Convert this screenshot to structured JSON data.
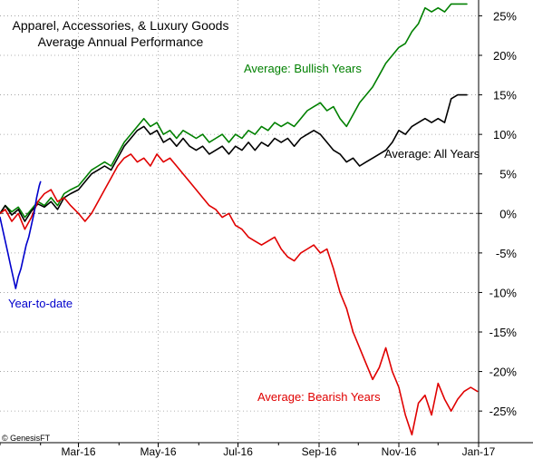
{
  "chart_data": {
    "type": "line",
    "title": "Apparel, Accessories, & Luxury Goods",
    "subtitle": "Average Annual Performance",
    "credit": "© GenesisFT",
    "y_unit": "percent",
    "ylim": [
      -29,
      27
    ],
    "y_ticks": [
      25,
      20,
      15,
      10,
      5,
      0,
      -5,
      -10,
      -15,
      -20,
      -25
    ],
    "y_tick_labels": [
      "25%",
      "20%",
      "15%",
      "10%",
      "5%",
      "0%",
      "-5%",
      "-10%",
      "-15%",
      "-20%",
      "-25%"
    ],
    "x_tick_labels": [
      "Mar-16",
      "May-16",
      "Jul-16",
      "Sep-16",
      "Nov-16",
      "Jan-17"
    ],
    "x_ticks": [
      "2016-03-01",
      "2016-05-01",
      "2016-07-01",
      "2016-09-01",
      "2016-11-01",
      "2017-01-01"
    ],
    "xlim": [
      "2016-01-01",
      "2017-01-01"
    ],
    "grid": true,
    "series": [
      {
        "name": "Average: Bullish Years",
        "color": "#008000",
        "points": [
          [
            "2016-01-01",
            0
          ],
          [
            "2016-01-05",
            1
          ],
          [
            "2016-01-10",
            0.2
          ],
          [
            "2016-01-15",
            0.8
          ],
          [
            "2016-01-20",
            -0.5
          ],
          [
            "2016-01-25",
            0.5
          ],
          [
            "2016-01-30",
            1.5
          ],
          [
            "2016-02-04",
            1.0
          ],
          [
            "2016-02-09",
            2.0
          ],
          [
            "2016-02-14",
            1.0
          ],
          [
            "2016-02-19",
            2.5
          ],
          [
            "2016-02-24",
            3.0
          ],
          [
            "2016-03-01",
            3.5
          ],
          [
            "2016-03-06",
            4.5
          ],
          [
            "2016-03-11",
            5.5
          ],
          [
            "2016-03-16",
            6.0
          ],
          [
            "2016-03-21",
            6.5
          ],
          [
            "2016-03-26",
            6.0
          ],
          [
            "2016-03-31",
            7.5
          ],
          [
            "2016-04-05",
            9.0
          ],
          [
            "2016-04-10",
            10.0
          ],
          [
            "2016-04-15",
            11.0
          ],
          [
            "2016-04-20",
            12.0
          ],
          [
            "2016-04-25",
            11.0
          ],
          [
            "2016-04-30",
            11.5
          ],
          [
            "2016-05-05",
            10.0
          ],
          [
            "2016-05-10",
            10.5
          ],
          [
            "2016-05-15",
            9.5
          ],
          [
            "2016-05-20",
            10.5
          ],
          [
            "2016-05-25",
            10.0
          ],
          [
            "2016-05-30",
            9.5
          ],
          [
            "2016-06-04",
            10.0
          ],
          [
            "2016-06-09",
            9.0
          ],
          [
            "2016-06-14",
            9.5
          ],
          [
            "2016-06-19",
            10.0
          ],
          [
            "2016-06-24",
            9.0
          ],
          [
            "2016-06-29",
            10.0
          ],
          [
            "2016-07-04",
            9.5
          ],
          [
            "2016-07-09",
            10.5
          ],
          [
            "2016-07-14",
            10.0
          ],
          [
            "2016-07-19",
            11.0
          ],
          [
            "2016-07-24",
            10.5
          ],
          [
            "2016-07-29",
            11.5
          ],
          [
            "2016-08-03",
            11.0
          ],
          [
            "2016-08-08",
            11.5
          ],
          [
            "2016-08-13",
            11.0
          ],
          [
            "2016-08-18",
            12.0
          ],
          [
            "2016-08-23",
            13.0
          ],
          [
            "2016-08-28",
            13.5
          ],
          [
            "2016-09-02",
            14.0
          ],
          [
            "2016-09-07",
            13.0
          ],
          [
            "2016-09-12",
            13.5
          ],
          [
            "2016-09-17",
            12.0
          ],
          [
            "2016-09-22",
            11.0
          ],
          [
            "2016-09-27",
            12.5
          ],
          [
            "2016-10-02",
            14.0
          ],
          [
            "2016-10-07",
            15.0
          ],
          [
            "2016-10-12",
            16.0
          ],
          [
            "2016-10-17",
            17.5
          ],
          [
            "2016-10-22",
            19.0
          ],
          [
            "2016-10-27",
            20.0
          ],
          [
            "2016-11-01",
            21.0
          ],
          [
            "2016-11-06",
            21.5
          ],
          [
            "2016-11-11",
            23.0
          ],
          [
            "2016-11-16",
            24.0
          ],
          [
            "2016-11-21",
            26.0
          ],
          [
            "2016-11-26",
            25.5
          ],
          [
            "2016-12-01",
            26.0
          ],
          [
            "2016-12-06",
            25.5
          ],
          [
            "2016-12-11",
            26.5
          ],
          [
            "2016-12-16",
            26.5
          ],
          [
            "2016-12-23",
            26.5
          ]
        ]
      },
      {
        "name": "Average: All Years",
        "color": "#000000",
        "points": [
          [
            "2016-01-01",
            0
          ],
          [
            "2016-01-05",
            1
          ],
          [
            "2016-01-10",
            -0.2
          ],
          [
            "2016-01-15",
            0.5
          ],
          [
            "2016-01-20",
            -1.0
          ],
          [
            "2016-01-25",
            0.3
          ],
          [
            "2016-01-30",
            1.2
          ],
          [
            "2016-02-04",
            0.8
          ],
          [
            "2016-02-09",
            1.5
          ],
          [
            "2016-02-14",
            0.5
          ],
          [
            "2016-02-19",
            2.0
          ],
          [
            "2016-02-24",
            2.5
          ],
          [
            "2016-03-01",
            3.0
          ],
          [
            "2016-03-06",
            4.0
          ],
          [
            "2016-03-11",
            5.0
          ],
          [
            "2016-03-16",
            5.5
          ],
          [
            "2016-03-21",
            6.0
          ],
          [
            "2016-03-26",
            5.5
          ],
          [
            "2016-03-31",
            7.0
          ],
          [
            "2016-04-05",
            8.5
          ],
          [
            "2016-04-10",
            9.5
          ],
          [
            "2016-04-15",
            10.5
          ],
          [
            "2016-04-20",
            11.0
          ],
          [
            "2016-04-25",
            10.0
          ],
          [
            "2016-04-30",
            10.5
          ],
          [
            "2016-05-05",
            9.0
          ],
          [
            "2016-05-10",
            9.5
          ],
          [
            "2016-05-15",
            8.5
          ],
          [
            "2016-05-20",
            9.5
          ],
          [
            "2016-05-25",
            8.5
          ],
          [
            "2016-05-30",
            8.0
          ],
          [
            "2016-06-04",
            8.5
          ],
          [
            "2016-06-09",
            7.5
          ],
          [
            "2016-06-14",
            8.0
          ],
          [
            "2016-06-19",
            8.5
          ],
          [
            "2016-06-24",
            7.5
          ],
          [
            "2016-06-29",
            8.5
          ],
          [
            "2016-07-04",
            8.0
          ],
          [
            "2016-07-09",
            9.0
          ],
          [
            "2016-07-14",
            8.0
          ],
          [
            "2016-07-19",
            9.0
          ],
          [
            "2016-07-24",
            8.5
          ],
          [
            "2016-07-29",
            9.5
          ],
          [
            "2016-08-03",
            9.0
          ],
          [
            "2016-08-08",
            9.5
          ],
          [
            "2016-08-13",
            8.5
          ],
          [
            "2016-08-18",
            9.5
          ],
          [
            "2016-08-23",
            10.0
          ],
          [
            "2016-08-28",
            10.5
          ],
          [
            "2016-09-02",
            10.0
          ],
          [
            "2016-09-07",
            9.0
          ],
          [
            "2016-09-12",
            8.0
          ],
          [
            "2016-09-17",
            7.5
          ],
          [
            "2016-09-22",
            6.5
          ],
          [
            "2016-09-27",
            7.0
          ],
          [
            "2016-10-02",
            6.0
          ],
          [
            "2016-10-07",
            6.5
          ],
          [
            "2016-10-12",
            7.0
          ],
          [
            "2016-10-17",
            7.5
          ],
          [
            "2016-10-22",
            8.0
          ],
          [
            "2016-10-27",
            9.0
          ],
          [
            "2016-11-01",
            10.5
          ],
          [
            "2016-11-06",
            10.0
          ],
          [
            "2016-11-11",
            11.0
          ],
          [
            "2016-11-16",
            11.5
          ],
          [
            "2016-11-21",
            12.0
          ],
          [
            "2016-11-26",
            11.5
          ],
          [
            "2016-12-01",
            12.0
          ],
          [
            "2016-12-06",
            11.5
          ],
          [
            "2016-12-11",
            14.5
          ],
          [
            "2016-12-16",
            15.0
          ],
          [
            "2016-12-23",
            15.0
          ]
        ]
      },
      {
        "name": "Average: Bearish Years",
        "color": "#e00000",
        "points": [
          [
            "2016-01-01",
            0
          ],
          [
            "2016-01-05",
            0.5
          ],
          [
            "2016-01-10",
            -1.0
          ],
          [
            "2016-01-15",
            0.0
          ],
          [
            "2016-01-20",
            -2.0
          ],
          [
            "2016-01-25",
            -0.5
          ],
          [
            "2016-01-30",
            1.5
          ],
          [
            "2016-02-04",
            2.5
          ],
          [
            "2016-02-09",
            3.0
          ],
          [
            "2016-02-14",
            1.5
          ],
          [
            "2016-02-19",
            2.0
          ],
          [
            "2016-02-24",
            1.0
          ],
          [
            "2016-03-01",
            0.0
          ],
          [
            "2016-03-06",
            -1.0
          ],
          [
            "2016-03-11",
            0.0
          ],
          [
            "2016-03-16",
            1.5
          ],
          [
            "2016-03-21",
            3.0
          ],
          [
            "2016-03-26",
            4.5
          ],
          [
            "2016-03-31",
            6.0
          ],
          [
            "2016-04-05",
            7.0
          ],
          [
            "2016-04-10",
            7.5
          ],
          [
            "2016-04-15",
            6.5
          ],
          [
            "2016-04-20",
            7.0
          ],
          [
            "2016-04-25",
            6.0
          ],
          [
            "2016-04-30",
            7.5
          ],
          [
            "2016-05-05",
            6.5
          ],
          [
            "2016-05-10",
            7.0
          ],
          [
            "2016-05-15",
            6.0
          ],
          [
            "2016-05-20",
            5.0
          ],
          [
            "2016-05-25",
            4.0
          ],
          [
            "2016-05-30",
            3.0
          ],
          [
            "2016-06-04",
            2.0
          ],
          [
            "2016-06-09",
            1.0
          ],
          [
            "2016-06-14",
            0.5
          ],
          [
            "2016-06-19",
            -0.5
          ],
          [
            "2016-06-24",
            0.0
          ],
          [
            "2016-06-29",
            -1.5
          ],
          [
            "2016-07-04",
            -2.0
          ],
          [
            "2016-07-09",
            -3.0
          ],
          [
            "2016-07-14",
            -3.5
          ],
          [
            "2016-07-19",
            -4.0
          ],
          [
            "2016-07-24",
            -3.5
          ],
          [
            "2016-07-29",
            -3.0
          ],
          [
            "2016-08-03",
            -4.5
          ],
          [
            "2016-08-08",
            -5.5
          ],
          [
            "2016-08-13",
            -6.0
          ],
          [
            "2016-08-18",
            -5.0
          ],
          [
            "2016-08-23",
            -4.5
          ],
          [
            "2016-08-28",
            -4.0
          ],
          [
            "2016-09-02",
            -5.0
          ],
          [
            "2016-09-07",
            -4.5
          ],
          [
            "2016-09-12",
            -7.0
          ],
          [
            "2016-09-17",
            -10.0
          ],
          [
            "2016-09-22",
            -12.0
          ],
          [
            "2016-09-27",
            -15.0
          ],
          [
            "2016-10-02",
            -17.0
          ],
          [
            "2016-10-07",
            -19.0
          ],
          [
            "2016-10-12",
            -21.0
          ],
          [
            "2016-10-17",
            -19.5
          ],
          [
            "2016-10-22",
            -17.0
          ],
          [
            "2016-10-27",
            -20.0
          ],
          [
            "2016-11-01",
            -22.0
          ],
          [
            "2016-11-06",
            -25.5
          ],
          [
            "2016-11-11",
            -28.0
          ],
          [
            "2016-11-16",
            -24.0
          ],
          [
            "2016-11-21",
            -23.0
          ],
          [
            "2016-11-26",
            -25.5
          ],
          [
            "2016-12-01",
            -21.5
          ],
          [
            "2016-12-06",
            -23.5
          ],
          [
            "2016-12-11",
            -25.0
          ],
          [
            "2016-12-16",
            -23.5
          ],
          [
            "2016-12-21",
            -22.5
          ],
          [
            "2016-12-26",
            -22.0
          ],
          [
            "2016-12-31",
            -22.5
          ]
        ]
      },
      {
        "name": "Year-to-date",
        "color": "#0000cc",
        "points": [
          [
            "2016-01-01",
            -0.5
          ],
          [
            "2016-01-03",
            -2.0
          ],
          [
            "2016-01-05",
            -3.5
          ],
          [
            "2016-01-07",
            -5.0
          ],
          [
            "2016-01-09",
            -6.5
          ],
          [
            "2016-01-11",
            -8.0
          ],
          [
            "2016-01-13",
            -9.5
          ],
          [
            "2016-01-15",
            -8.0
          ],
          [
            "2016-01-17",
            -7.0
          ],
          [
            "2016-01-19",
            -5.5
          ],
          [
            "2016-01-21",
            -4.0
          ],
          [
            "2016-01-23",
            -3.0
          ],
          [
            "2016-01-25",
            -1.5
          ],
          [
            "2016-01-27",
            0.0
          ],
          [
            "2016-01-29",
            2.0
          ],
          [
            "2016-01-31",
            3.5
          ],
          [
            "2016-02-01",
            4.0
          ]
        ]
      }
    ],
    "annotations": [
      {
        "text": "Average: Bullish Years",
        "color": "#008000"
      },
      {
        "text": "Average: All Years",
        "color": "#000000"
      },
      {
        "text": "Average: Bearish Years",
        "color": "#e00000"
      },
      {
        "text": "Year-to-date",
        "color": "#0000cc"
      }
    ]
  }
}
